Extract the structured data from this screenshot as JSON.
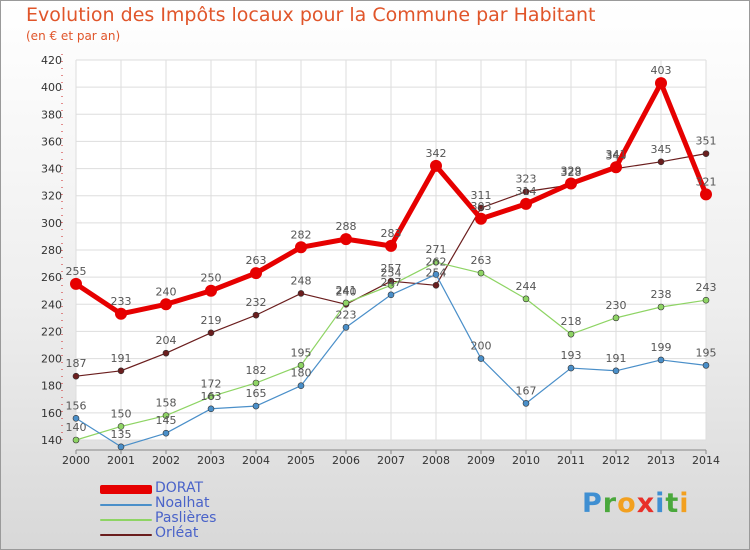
{
  "title": "Evolution des Impôts locaux pour la Commune par Habitant",
  "subtitle": "(en € et par an)",
  "logo": {
    "text": "Proxiti",
    "letters": [
      "P",
      "r",
      "o",
      "x",
      "i",
      "t",
      "i"
    ]
  },
  "colors": {
    "DORAT": "#e60000",
    "Noalhat": "#4a8fc9",
    "Paslieres": "#8ed464",
    "Orleat": "#6b1e1e",
    "title": "#e0552a",
    "legend_text": "#4a63c9"
  },
  "chart_data": {
    "type": "line",
    "title": "Evolution des Impôts locaux pour la Commune par Habitant",
    "subtitle": "(en € et par an)",
    "xlabel": "",
    "ylabel": "",
    "x": [
      "2000",
      "2001",
      "2002",
      "2003",
      "2004",
      "2005",
      "2006",
      "2007",
      "2008",
      "2009",
      "2010",
      "2011",
      "2012",
      "2013",
      "2014"
    ],
    "ylim": [
      120,
      420
    ],
    "yticks": [
      140,
      160,
      180,
      200,
      220,
      240,
      260,
      280,
      300,
      320,
      340,
      360,
      380,
      400,
      420
    ],
    "grid": true,
    "legend": "bottom-left",
    "series": [
      {
        "name": "Orléat",
        "values": [
          187,
          191,
          204,
          219,
          232,
          248,
          240,
          257,
          254,
          311,
          323,
          328,
          340,
          345,
          351
        ]
      },
      {
        "name": "Paslières",
        "values": [
          140,
          150,
          158,
          172,
          182,
          195,
          241,
          254,
          271,
          263,
          244,
          218,
          230,
          238,
          243
        ]
      },
      {
        "name": "Noalhat",
        "values": [
          156,
          135,
          145,
          163,
          165,
          180,
          223,
          247,
          262,
          200,
          167,
          193,
          191,
          199,
          195
        ]
      },
      {
        "name": "DORAT",
        "values": [
          255,
          233,
          240,
          250,
          263,
          282,
          288,
          283,
          342,
          303,
          314,
          329,
          341,
          403,
          321
        ]
      }
    ]
  }
}
